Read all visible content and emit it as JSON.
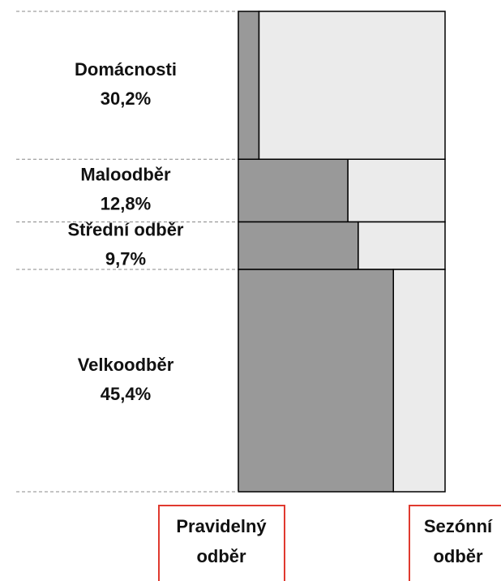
{
  "chart_data": {
    "type": "mekko",
    "categories": [
      "Domácnosti",
      "Maloodběr",
      "Střední odběr",
      "Velkoodběr"
    ],
    "values": [
      30.2,
      12.8,
      9.7,
      45.4
    ],
    "value_labels": [
      "30,2%",
      "12,8%",
      "9,7%",
      "45,4%"
    ],
    "series": [
      {
        "name": "Pravidelný odběr",
        "color": "#999999",
        "values": [
          10,
          53,
          58,
          75
        ]
      },
      {
        "name": "Sezónní odběr",
        "color": "#ebebeb",
        "values": [
          90,
          47,
          42,
          25
        ]
      }
    ],
    "legend_border_color": "#e03a2f"
  }
}
